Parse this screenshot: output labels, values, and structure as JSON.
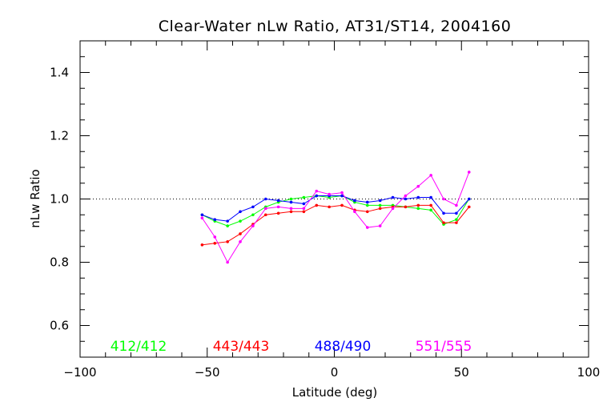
{
  "chart_data": {
    "type": "line",
    "title": "Clear-Water nLw Ratio, AT31/ST14, 2004160",
    "xlabel": "Latitude (deg)",
    "ylabel": "nLw Ratio",
    "xlim": [
      -100,
      100
    ],
    "ylim": [
      0.5,
      1.5
    ],
    "xticks": [
      -100,
      -50,
      0,
      50,
      100
    ],
    "yticks": [
      0.6,
      0.8,
      1.0,
      1.2,
      1.4
    ],
    "xtick_labels": [
      "−100",
      "−50",
      "0",
      "50",
      "100"
    ],
    "ytick_labels": [
      "0.6",
      "0.8",
      "1.0",
      "1.2",
      "1.4"
    ],
    "reference_line": 1.0,
    "grid": false,
    "legend_placement": "bottom",
    "x": [
      -52,
      -47,
      -42,
      -37,
      -32,
      -27,
      -22,
      -17,
      -12,
      -7,
      -2,
      3,
      8,
      13,
      18,
      23,
      28,
      33,
      38,
      43,
      48,
      53
    ],
    "series": [
      {
        "name": "412/412",
        "color": "#00ff00",
        "values": [
          0.95,
          0.93,
          0.915,
          0.93,
          0.95,
          0.975,
          0.99,
          1.0,
          1.005,
          1.01,
          1.005,
          1.01,
          0.99,
          0.98,
          0.98,
          0.98,
          0.975,
          0.97,
          0.965,
          0.92,
          0.935,
          1.0
        ]
      },
      {
        "name": "443/443",
        "color": "#ff0000",
        "values": [
          0.855,
          0.86,
          0.865,
          0.89,
          0.92,
          0.95,
          0.955,
          0.96,
          0.96,
          0.98,
          0.975,
          0.98,
          0.965,
          0.96,
          0.97,
          0.975,
          0.975,
          0.98,
          0.98,
          0.925,
          0.925,
          0.975
        ]
      },
      {
        "name": "488/490",
        "color": "#0000ff",
        "values": [
          0.95,
          0.935,
          0.93,
          0.96,
          0.975,
          1.0,
          0.995,
          0.99,
          0.985,
          1.01,
          1.01,
          1.01,
          0.995,
          0.99,
          0.995,
          1.005,
          1.0,
          1.005,
          1.005,
          0.955,
          0.955,
          1.0
        ]
      },
      {
        "name": "551/555",
        "color": "#ff00ff",
        "values": [
          0.94,
          0.88,
          0.8,
          0.865,
          0.915,
          0.97,
          0.975,
          0.97,
          0.97,
          1.025,
          1.015,
          1.02,
          0.96,
          0.91,
          0.915,
          0.97,
          1.01,
          1.04,
          1.075,
          1.0,
          0.98,
          1.085
        ]
      }
    ]
  }
}
